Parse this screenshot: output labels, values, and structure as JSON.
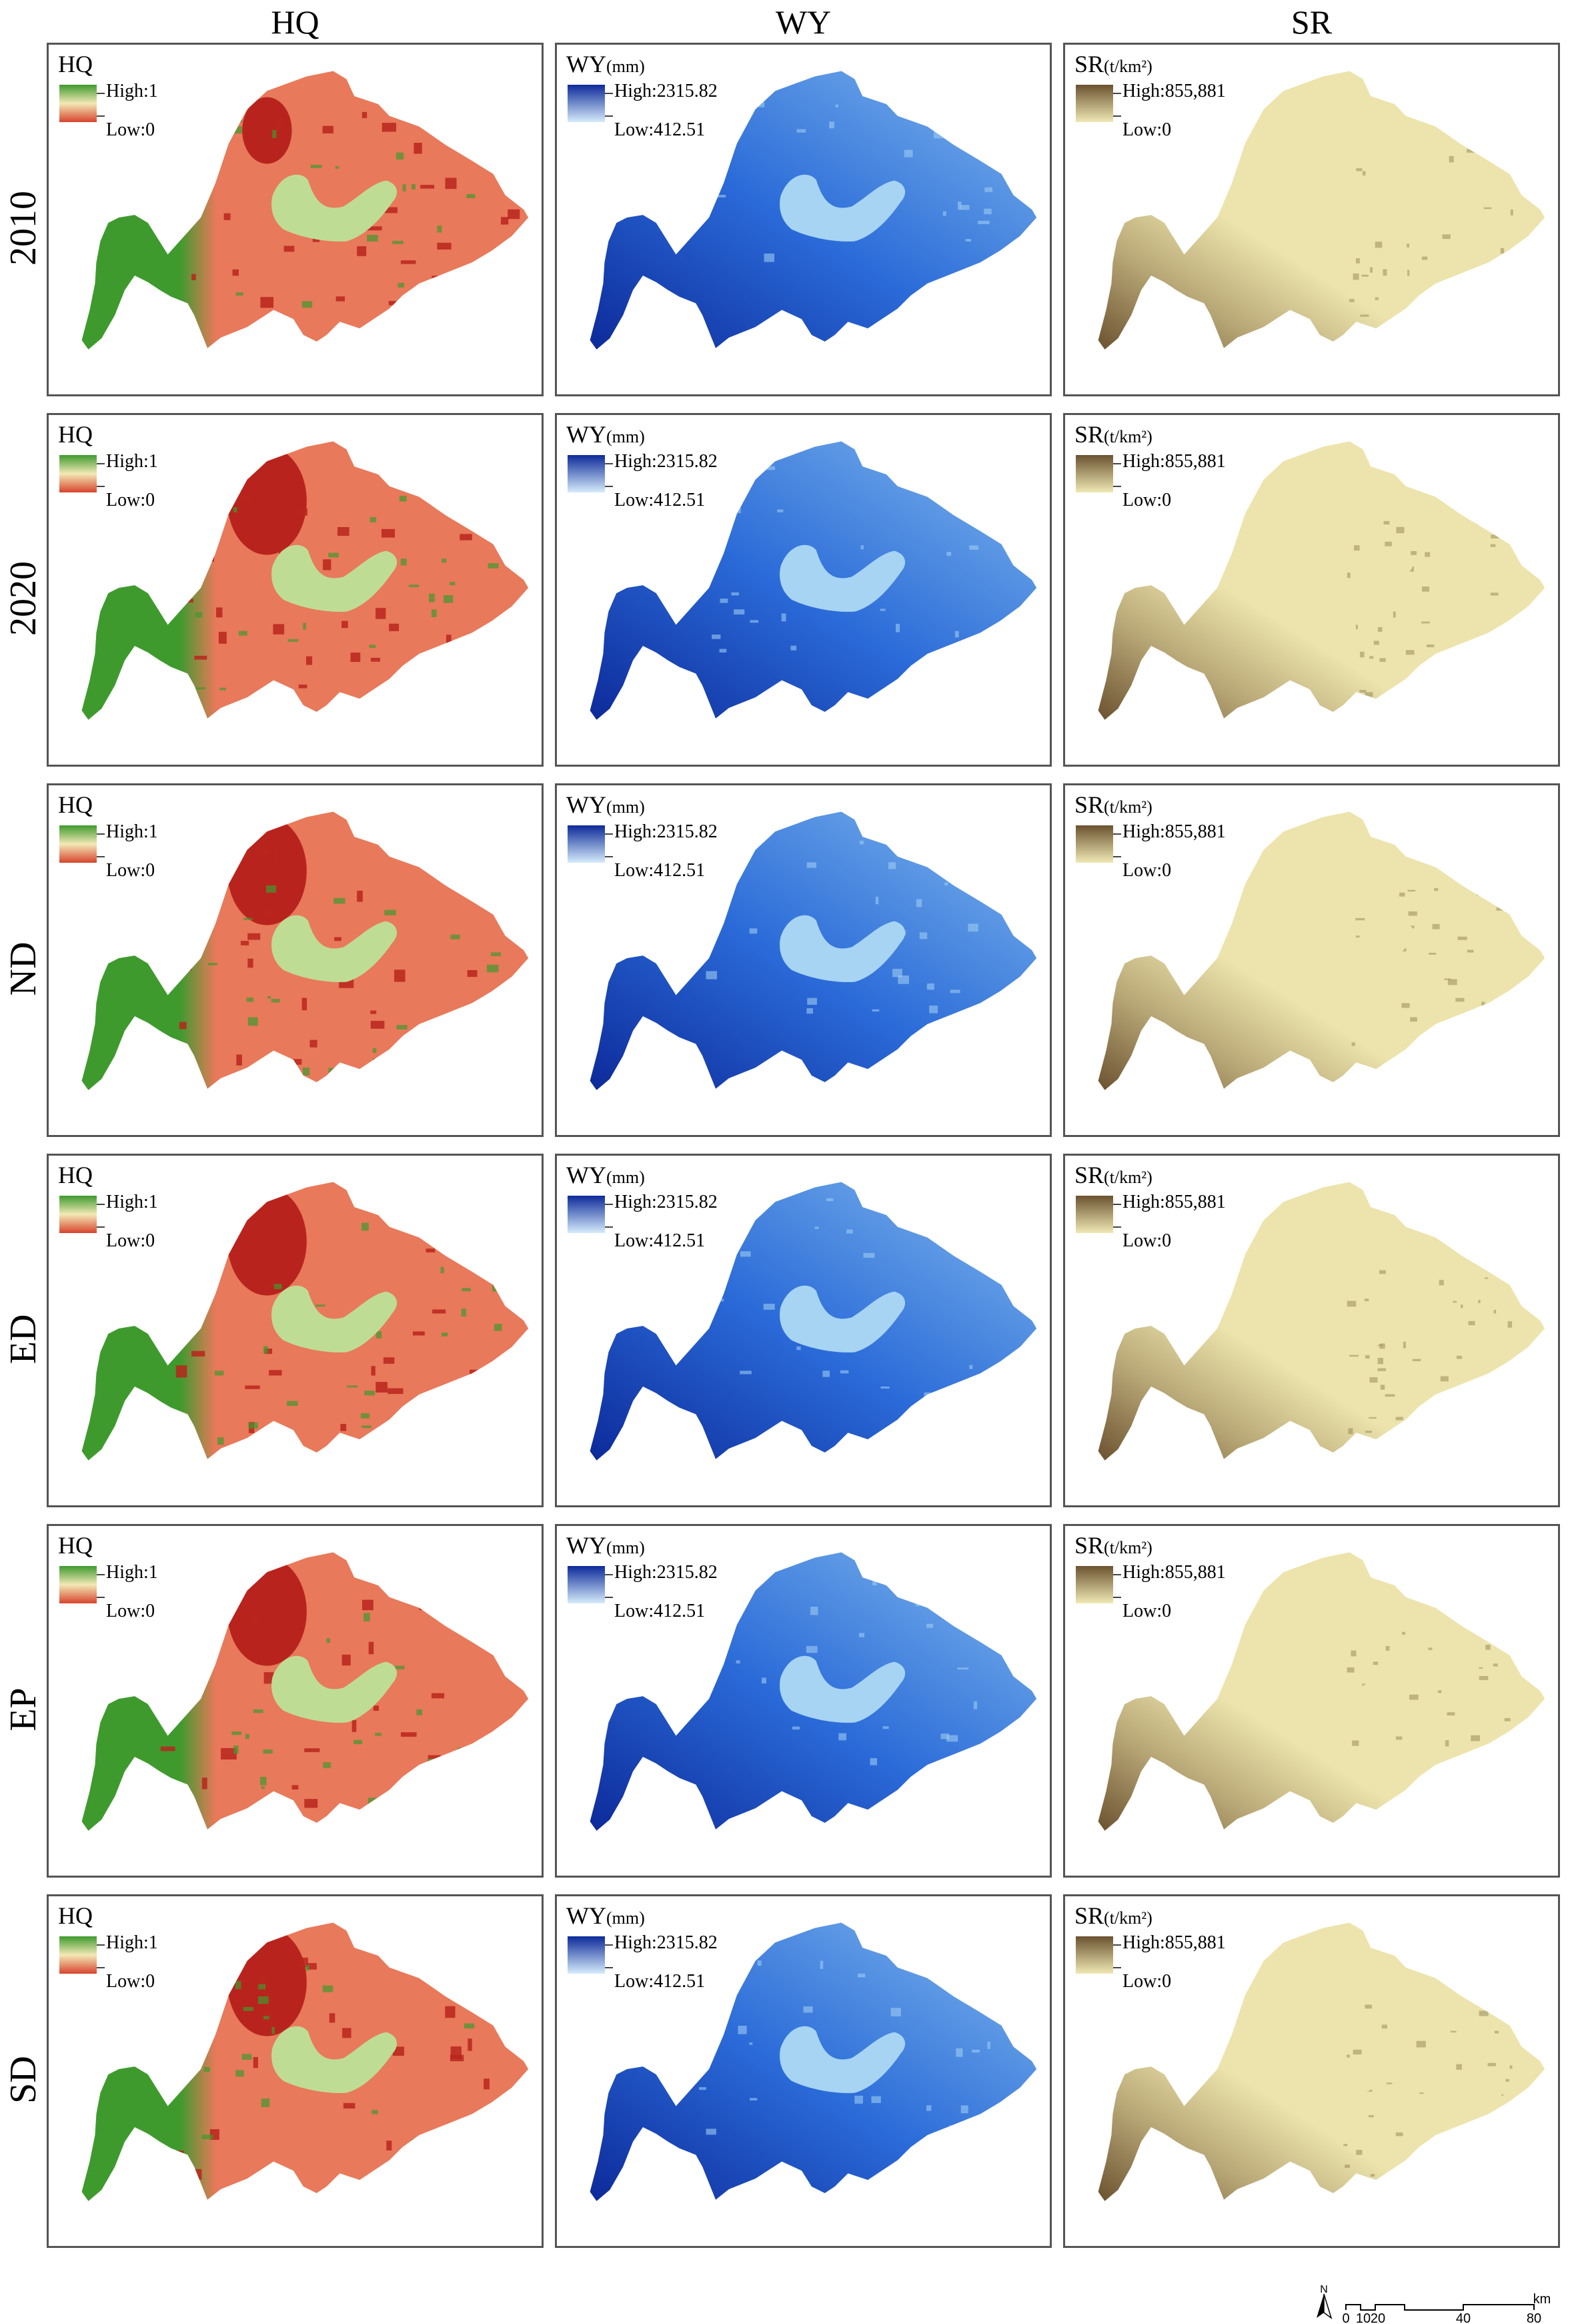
{
  "columns": [
    {
      "id": "hq",
      "header": "HQ",
      "legend_title": "HQ",
      "legend_unit": "",
      "high": "High:1",
      "low": "Low:0"
    },
    {
      "id": "wy",
      "header": "WY",
      "legend_title": "WY",
      "legend_unit": "(mm)",
      "high": "High:2315.82",
      "low": "Low:412.51"
    },
    {
      "id": "sr",
      "header": "SR",
      "legend_title": "SR",
      "legend_unit": "(t/km²)",
      "high": "High:855,881",
      "low": "Low:0"
    }
  ],
  "rows": [
    "2010",
    "2020",
    "ND",
    "ED",
    "EP",
    "SD"
  ],
  "colors": {
    "hq_high": "#3f9a2e",
    "hq_mid": "#f3e9b6",
    "hq_low": "#d8432d",
    "hq_base": "#e8795a",
    "hq_dark": "#b8241d",
    "hq_lake": "#bfdc95",
    "wy_high": "#0d2a9a",
    "wy_low": "#d6ecfb",
    "wy_base": "#2f7fdc",
    "wy_lake": "#a6d4f2",
    "sr_high": "#6b5230",
    "sr_low": "#f0e9b4",
    "sr_base": "#ece4ac",
    "sr_dark": "#9b8a5a"
  },
  "north": "N",
  "scalebar": {
    "unit": "km",
    "ticks": [
      "0",
      "10",
      "20",
      "40",
      "80"
    ]
  }
}
